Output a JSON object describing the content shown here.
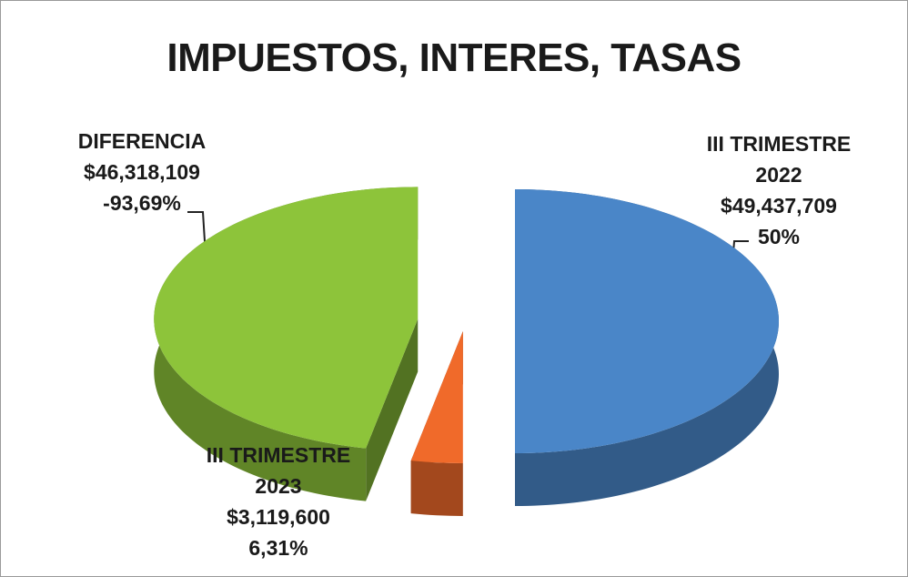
{
  "chart_data": {
    "type": "pie",
    "title": "IMPUESTOS, INTERES, TASAS",
    "categories": [
      "III TRIMESTRE 2022",
      "III TRIMESTRE 2023",
      "DIFERENCIA"
    ],
    "values": [
      49437709,
      3119600,
      46318109
    ],
    "value_labels": [
      "$49,437,709",
      "$3,119,600",
      "$46,318,109"
    ],
    "percents": [
      50,
      6.31,
      -93.69
    ],
    "percent_labels": [
      "50%",
      "6,31%",
      "-93,69%"
    ],
    "colors": [
      "#4a86c8",
      "#f06a2a",
      "#8dc43a"
    ]
  }
}
